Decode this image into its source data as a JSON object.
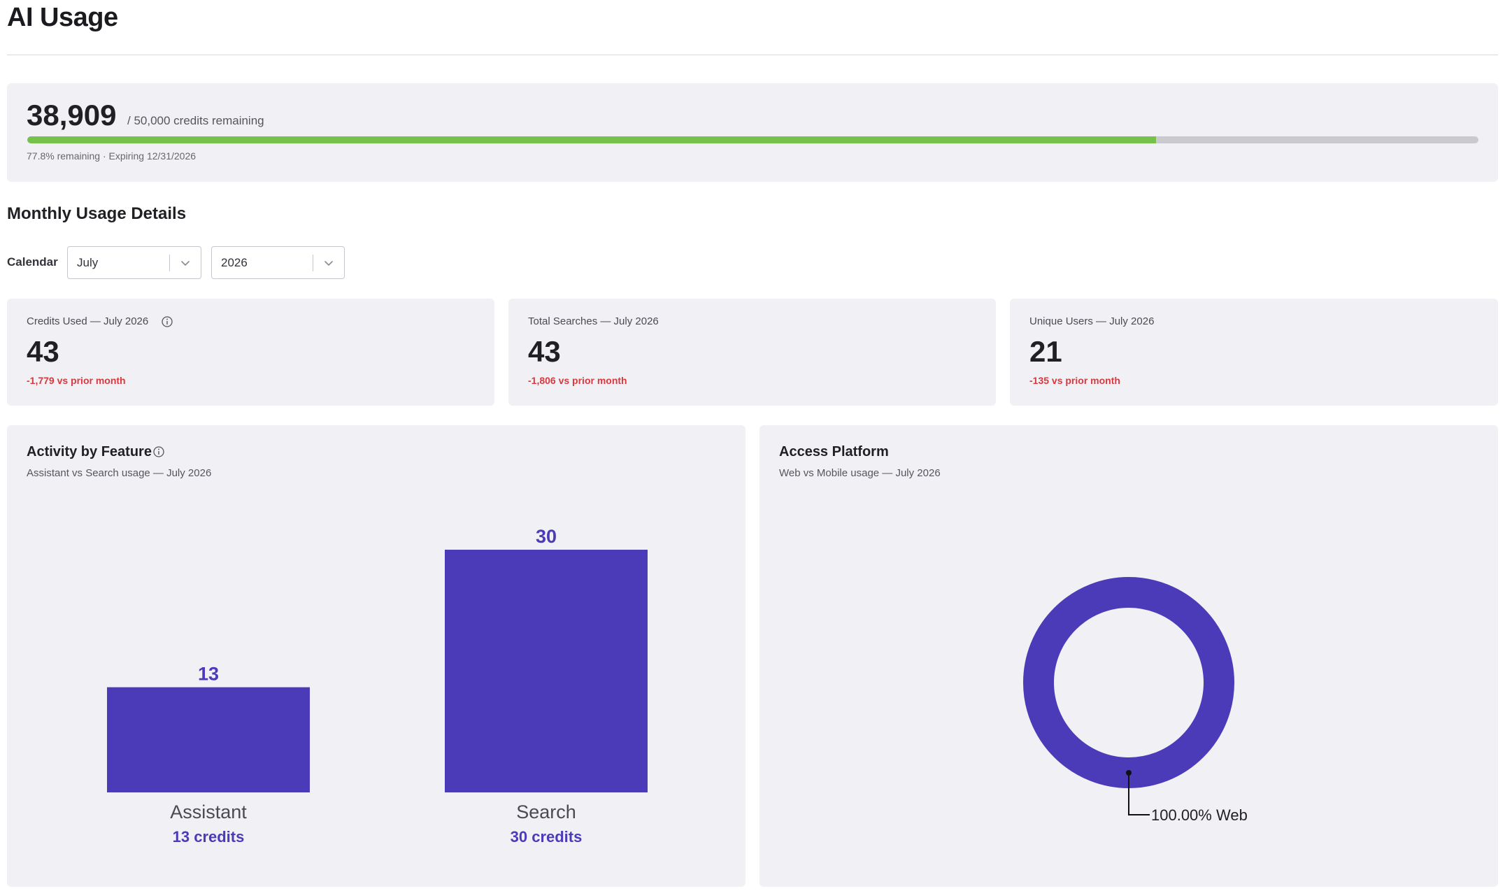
{
  "page": {
    "title": "AI Usage"
  },
  "credits": {
    "remaining": "38,909",
    "total_label": "/ 50,000 credits remaining",
    "remaining_fraction": 0.778,
    "meta": "77.8% remaining · Expiring 12/31/2026",
    "bar_color": "#76c14a",
    "track_color": "#c9c9ce"
  },
  "monthly": {
    "title": "Monthly Usage Details",
    "calendar_label": "Calendar",
    "month_select": {
      "value": "July"
    },
    "year_select": {
      "value": "2026"
    }
  },
  "stats": [
    {
      "label": "Credits Used — July 2026",
      "value": "43",
      "delta": "-1,779 vs prior month",
      "info_icon": "info-icon"
    },
    {
      "label": "Total Searches — July 2026",
      "value": "43",
      "delta": "-1,806 vs prior month"
    },
    {
      "label": "Unique Users — July 2026",
      "value": "21",
      "delta": "-135 vs prior month"
    }
  ],
  "activity": {
    "title": "Activity by Feature",
    "subtitle": "Assistant vs Search usage — July 2026",
    "color": "#4b3bb8"
  },
  "platform": {
    "title": "Access Platform",
    "subtitle": "Web vs Mobile usage — July 2026",
    "color": "#4b3bb8"
  },
  "chart_data": [
    {
      "type": "bar",
      "title": "Activity by Feature",
      "subtitle": "Assistant vs Search usage — July 2026",
      "categories": [
        "Assistant",
        "Search"
      ],
      "values": [
        13,
        30
      ],
      "value_labels": [
        "13",
        "30"
      ],
      "sub_labels": [
        "13 credits",
        "30 credits"
      ],
      "ylim": [
        0,
        30
      ],
      "grid": false
    },
    {
      "type": "pie",
      "title": "Access Platform",
      "subtitle": "Web vs Mobile usage — July 2026",
      "donut": true,
      "slices": [
        {
          "label": "Web",
          "value": 100.0,
          "display": "100.00% Web"
        }
      ]
    }
  ]
}
